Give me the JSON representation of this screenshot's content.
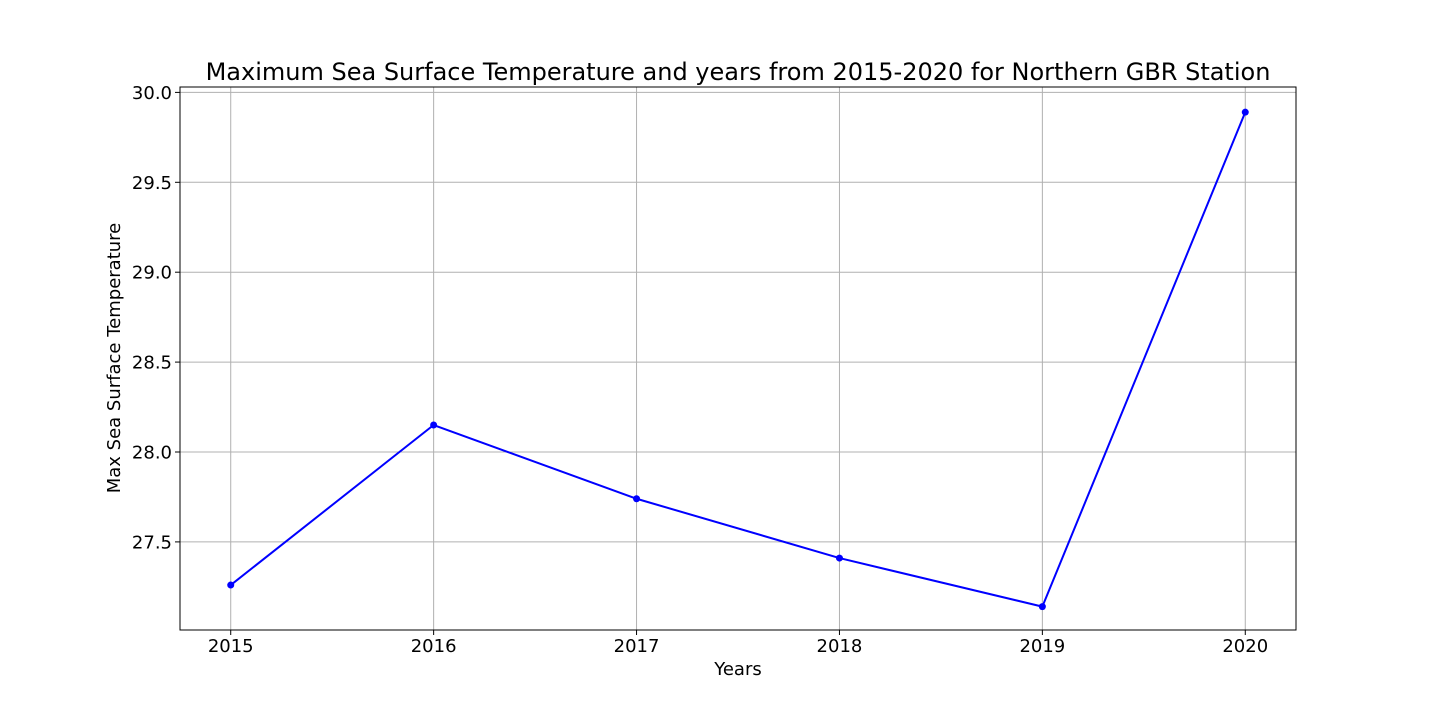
{
  "chart_data": {
    "type": "line",
    "title": "Maximum Sea Surface Temperature and years from 2015-2020 for Northern GBR Station",
    "xlabel": "Years",
    "ylabel": "Max Sea Surface Temperature",
    "x": [
      2015,
      2016,
      2017,
      2018,
      2019,
      2020
    ],
    "x_tick_labels": [
      "2015",
      "2016",
      "2017",
      "2018",
      "2019",
      "2020"
    ],
    "xlim": [
      2014.75,
      2020.25
    ],
    "y_ticks": [
      27.5,
      28.0,
      28.5,
      29.0,
      29.5,
      30.0
    ],
    "y_tick_labels": [
      "27.5",
      "28.0",
      "28.5",
      "29.0",
      "29.5",
      "30.0"
    ],
    "ylim": [
      27.01,
      30.03
    ],
    "grid": true,
    "series": [
      {
        "values": [
          27.26,
          28.15,
          27.74,
          27.41,
          27.14,
          29.89
        ],
        "color": "#0000ff",
        "marker": "circle"
      }
    ]
  }
}
